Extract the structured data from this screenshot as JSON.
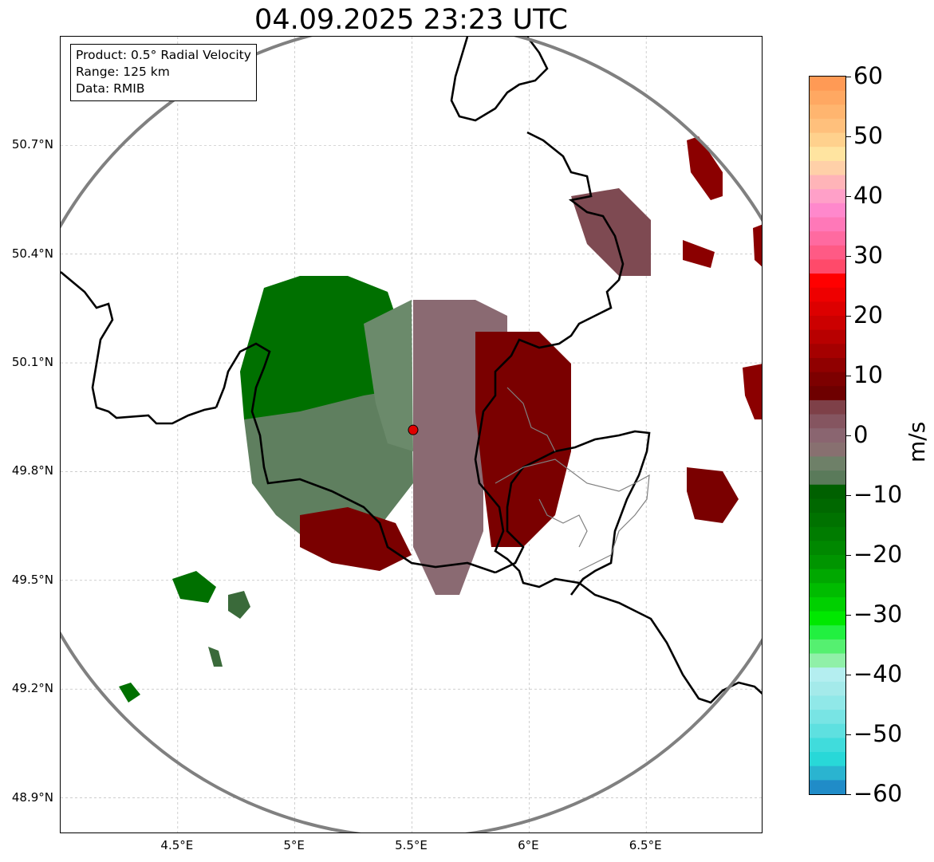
{
  "title": "04.09.2025 23:23 UTC",
  "info": {
    "product": "Product: 0.5° Radial Velocity",
    "range": "Range: 125 km",
    "data": "Data: RMIB"
  },
  "map": {
    "y_ticks": [
      "50.7°N",
      "50.4°N",
      "50.1°N",
      "49.8°N",
      "49.5°N",
      "49.2°N",
      "48.9°N"
    ],
    "x_ticks": [
      "4.5°E",
      "5°E",
      "5.5°E",
      "6°E",
      "6.5°E"
    ],
    "lon_range": [
      4.0,
      7.0
    ],
    "lat_range": [
      48.8,
      51.0
    ],
    "radar_site": {
      "lon": 5.505,
      "lat": 49.915
    },
    "range_ring_km": 125,
    "colors": {
      "border": "#000000",
      "ring": "#808080",
      "grid": "#b0b0b0",
      "site": "#e00000"
    }
  },
  "colorbar": {
    "label": "m/s",
    "min": -60,
    "max": 60,
    "ticks": [
      "60",
      "50",
      "40",
      "30",
      "20",
      "10",
      "0",
      "−10",
      "−20",
      "−30",
      "−40",
      "−50",
      "−60"
    ],
    "colors_top_to_bottom": [
      "#ff9a55",
      "#ffa862",
      "#ffb56f",
      "#ffc07c",
      "#ffd18d",
      "#ffe4a0",
      "#ffd0a8",
      "#ffb4b8",
      "#ffa0c8",
      "#ff88cc",
      "#ff78b8",
      "#ff6aa0",
      "#ff5a85",
      "#ff4a6a",
      "#ff0000",
      "#ee0000",
      "#dd0000",
      "#cc0000",
      "#b80000",
      "#a50000",
      "#900000",
      "#7d0000",
      "#6e0000",
      "#7e4048",
      "#855560",
      "#8a6570",
      "#887070",
      "#6e8068",
      "#5a7a5a",
      "#006000",
      "#006800",
      "#007200",
      "#007c00",
      "#008800",
      "#009500",
      "#00a800",
      "#00bc00",
      "#00d000",
      "#00e800",
      "#22f040",
      "#55f070",
      "#90f0a8",
      "#b4eef0",
      "#a4eaea",
      "#90e8e8",
      "#78e4e4",
      "#5ee0e0",
      "#40dcdc",
      "#28d8d8",
      "#2ab4d0",
      "#208cc8"
    ]
  }
}
